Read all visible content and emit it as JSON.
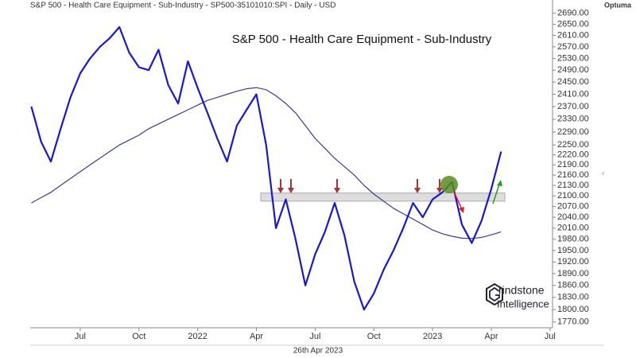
{
  "chart_data": {
    "type": "line",
    "header": "S&P 500 - Health Care Equipment - Sub-Industry - SP500-35101010:SPI - Daily - USD",
    "brand": "Optuma",
    "title": "S&P 500 - Health Care Equipment - Sub-Industry",
    "date_label": "26th Apr 2023",
    "logo": [
      "rindstone",
      "Intelligence"
    ],
    "log_scale": true,
    "categories": [
      null,
      null,
      null,
      null,
      null,
      "Jul",
      null,
      null,
      null,
      null,
      null,
      "Oct",
      null,
      null,
      null,
      null,
      null,
      "2022",
      null,
      null,
      null,
      null,
      null,
      "Apr",
      null,
      null,
      null,
      null,
      null,
      "Jul",
      null,
      null,
      null,
      null,
      null,
      "Oct",
      null,
      null,
      null,
      null,
      null,
      "2023",
      null,
      null,
      null,
      null,
      null,
      "Apr",
      null,
      null,
      null,
      null,
      null,
      "Jul"
    ],
    "series": [
      {
        "name": "Price",
        "color": "#1717d4",
        "values": [
          2370,
          2260,
          2200,
          2300,
          2400,
          2480,
          2530,
          2570,
          2600,
          2640,
          2550,
          2500,
          2490,
          2560,
          2440,
          2380,
          2520,
          2430,
          2350,
          2270,
          2200,
          2310,
          2360,
          2410,
          2250,
          2010,
          2090,
          1980,
          1860,
          1940,
          2000,
          2080,
          1990,
          1870,
          1800,
          1840,
          1900,
          1950,
          2010,
          2080,
          2040,
          2090,
          2110,
          2140,
          2020,
          1970,
          2030,
          2120,
          2230,
          null,
          null,
          null,
          null,
          null
        ]
      },
      {
        "name": "Moving Average",
        "color": "#3b3b9c",
        "values": [
          2080,
          2095,
          2110,
          2130,
          2150,
          2170,
          2190,
          2210,
          2230,
          2250,
          2265,
          2280,
          2300,
          2315,
          2330,
          2345,
          2360,
          2375,
          2390,
          2400,
          2410,
          2420,
          2428,
          2432,
          2425,
          2405,
          2380,
          2350,
          2310,
          2270,
          2240,
          2210,
          2185,
          2160,
          2130,
          2105,
          2085,
          2065,
          2050,
          2035,
          2020,
          2005,
          1995,
          1988,
          1983,
          1982,
          1985,
          1992,
          2000,
          null,
          null,
          null,
          null,
          null
        ]
      }
    ],
    "band": [
      2085,
      2108
    ],
    "ylim": [
      1760,
      2715
    ],
    "yticks": [
      {
        "value": 1770,
        "label": "1770.00"
      },
      {
        "value": 1800,
        "label": "1800.00"
      },
      {
        "value": 1830,
        "label": "1830.00"
      },
      {
        "value": 1860,
        "label": "1860.00"
      },
      {
        "value": 1890,
        "label": "1890.00"
      },
      {
        "value": 1920,
        "label": "1920.00"
      },
      {
        "value": 1950,
        "label": "1950.00"
      },
      {
        "value": 1980,
        "label": "1980.00"
      },
      {
        "value": 2010,
        "label": "2010.00"
      },
      {
        "value": 2040,
        "label": "2040.00"
      },
      {
        "value": 2070,
        "label": "2070.00"
      },
      {
        "value": 2100,
        "label": "2100.00"
      },
      {
        "value": 2130,
        "label": "2130.00"
      },
      {
        "value": 2160,
        "label": "2160.00"
      },
      {
        "value": 2190,
        "label": "2190.00"
      },
      {
        "value": 2220,
        "label": "2220.00"
      },
      {
        "value": 2250,
        "label": "2250.00"
      },
      {
        "value": 2290,
        "label": "2290.00"
      },
      {
        "value": 2330,
        "label": "2330.00"
      },
      {
        "value": 2370,
        "label": "2370.00"
      },
      {
        "value": 2410,
        "label": "2410.00"
      },
      {
        "value": 2450,
        "label": "2450.00"
      },
      {
        "value": 2490,
        "label": "2490.00"
      },
      {
        "value": 2530,
        "label": "2530.00"
      },
      {
        "value": 2570,
        "label": "2570.00"
      },
      {
        "value": 2610,
        "label": "2610.00"
      },
      {
        "value": 2650,
        "label": "2650.00"
      },
      {
        "value": 2690,
        "label": "2690.00"
      }
    ]
  }
}
